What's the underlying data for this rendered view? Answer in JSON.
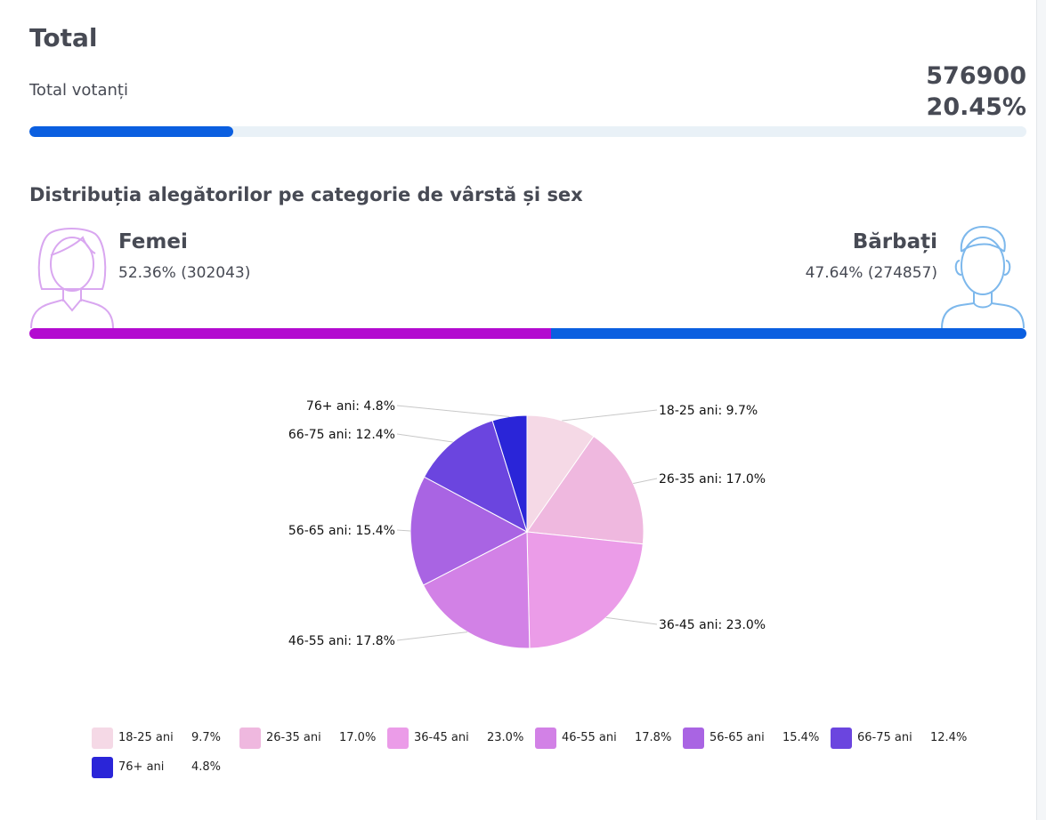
{
  "header": {
    "title": "Total",
    "total_label": "Total votanți",
    "total_count": "576900",
    "total_percent": "20.45%",
    "turnout_fraction": 0.2045
  },
  "gender": {
    "subtitle": "Distribuția alegătorilor pe categorie de vârstă și sex",
    "female": {
      "label": "Femei",
      "value_text": "52.36% (302043)",
      "share": 0.5236,
      "color": "#b30bd0"
    },
    "male": {
      "label": "Bărbați",
      "value_text": "47.64% (274857)",
      "share": 0.4764,
      "color": "#0b5fe0"
    }
  },
  "chart_data": {
    "type": "pie",
    "categories": [
      "18-25 ani",
      "26-35 ani",
      "36-45 ani",
      "46-55 ani",
      "56-65 ani",
      "66-75 ani",
      "76+ ani"
    ],
    "values": [
      9.7,
      17.0,
      23.0,
      17.8,
      15.4,
      12.4,
      4.8
    ],
    "colors": [
      "#f5d9e6",
      "#efb8df",
      "#eb9ce8",
      "#d281e6",
      "#a964e3",
      "#6b45df",
      "#2a25d8"
    ],
    "slice_labels": [
      "18-25 ani: 9.7%",
      "26-35 ani: 17.0%",
      "36-45 ani: 23.0%",
      "46-55 ani: 17.8%",
      "56-65 ani: 15.4%",
      "66-75 ani: 12.4%",
      "76+ ani: 4.8%"
    ],
    "legend_percents": [
      "9.7%",
      "17.0%",
      "23.0%",
      "17.8%",
      "15.4%",
      "12.4%",
      "4.8%"
    ],
    "legend_position": "bottom"
  }
}
